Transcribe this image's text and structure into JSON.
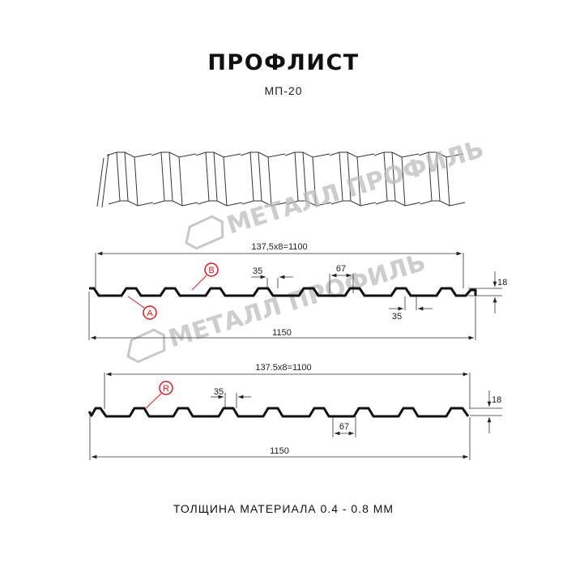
{
  "header": {
    "title": "ПРОФЛИСТ",
    "subtitle": "МП-20"
  },
  "watermark": "МЕТАЛЛ ПРОФИЛЬ",
  "profile_top": {
    "pitch_label": "137,5x8=1100",
    "width_label": "1150",
    "crest_label": "35",
    "valley_label": "35",
    "span_label": "67",
    "height_label": "18",
    "marker_a": "A",
    "marker_b": "B"
  },
  "profile_bottom": {
    "pitch_label": "137.5x8=1100",
    "width_label": "1150",
    "crest_label": "35",
    "span_label": "67",
    "height_label": "18",
    "marker_r": "R"
  },
  "footer": "ТОЛЩИНА МАТЕРИАЛА 0.4 - 0.8 ММ",
  "colors": {
    "profile": "#111111",
    "marker": "#e8141b",
    "watermark": "#bdbdbd"
  }
}
